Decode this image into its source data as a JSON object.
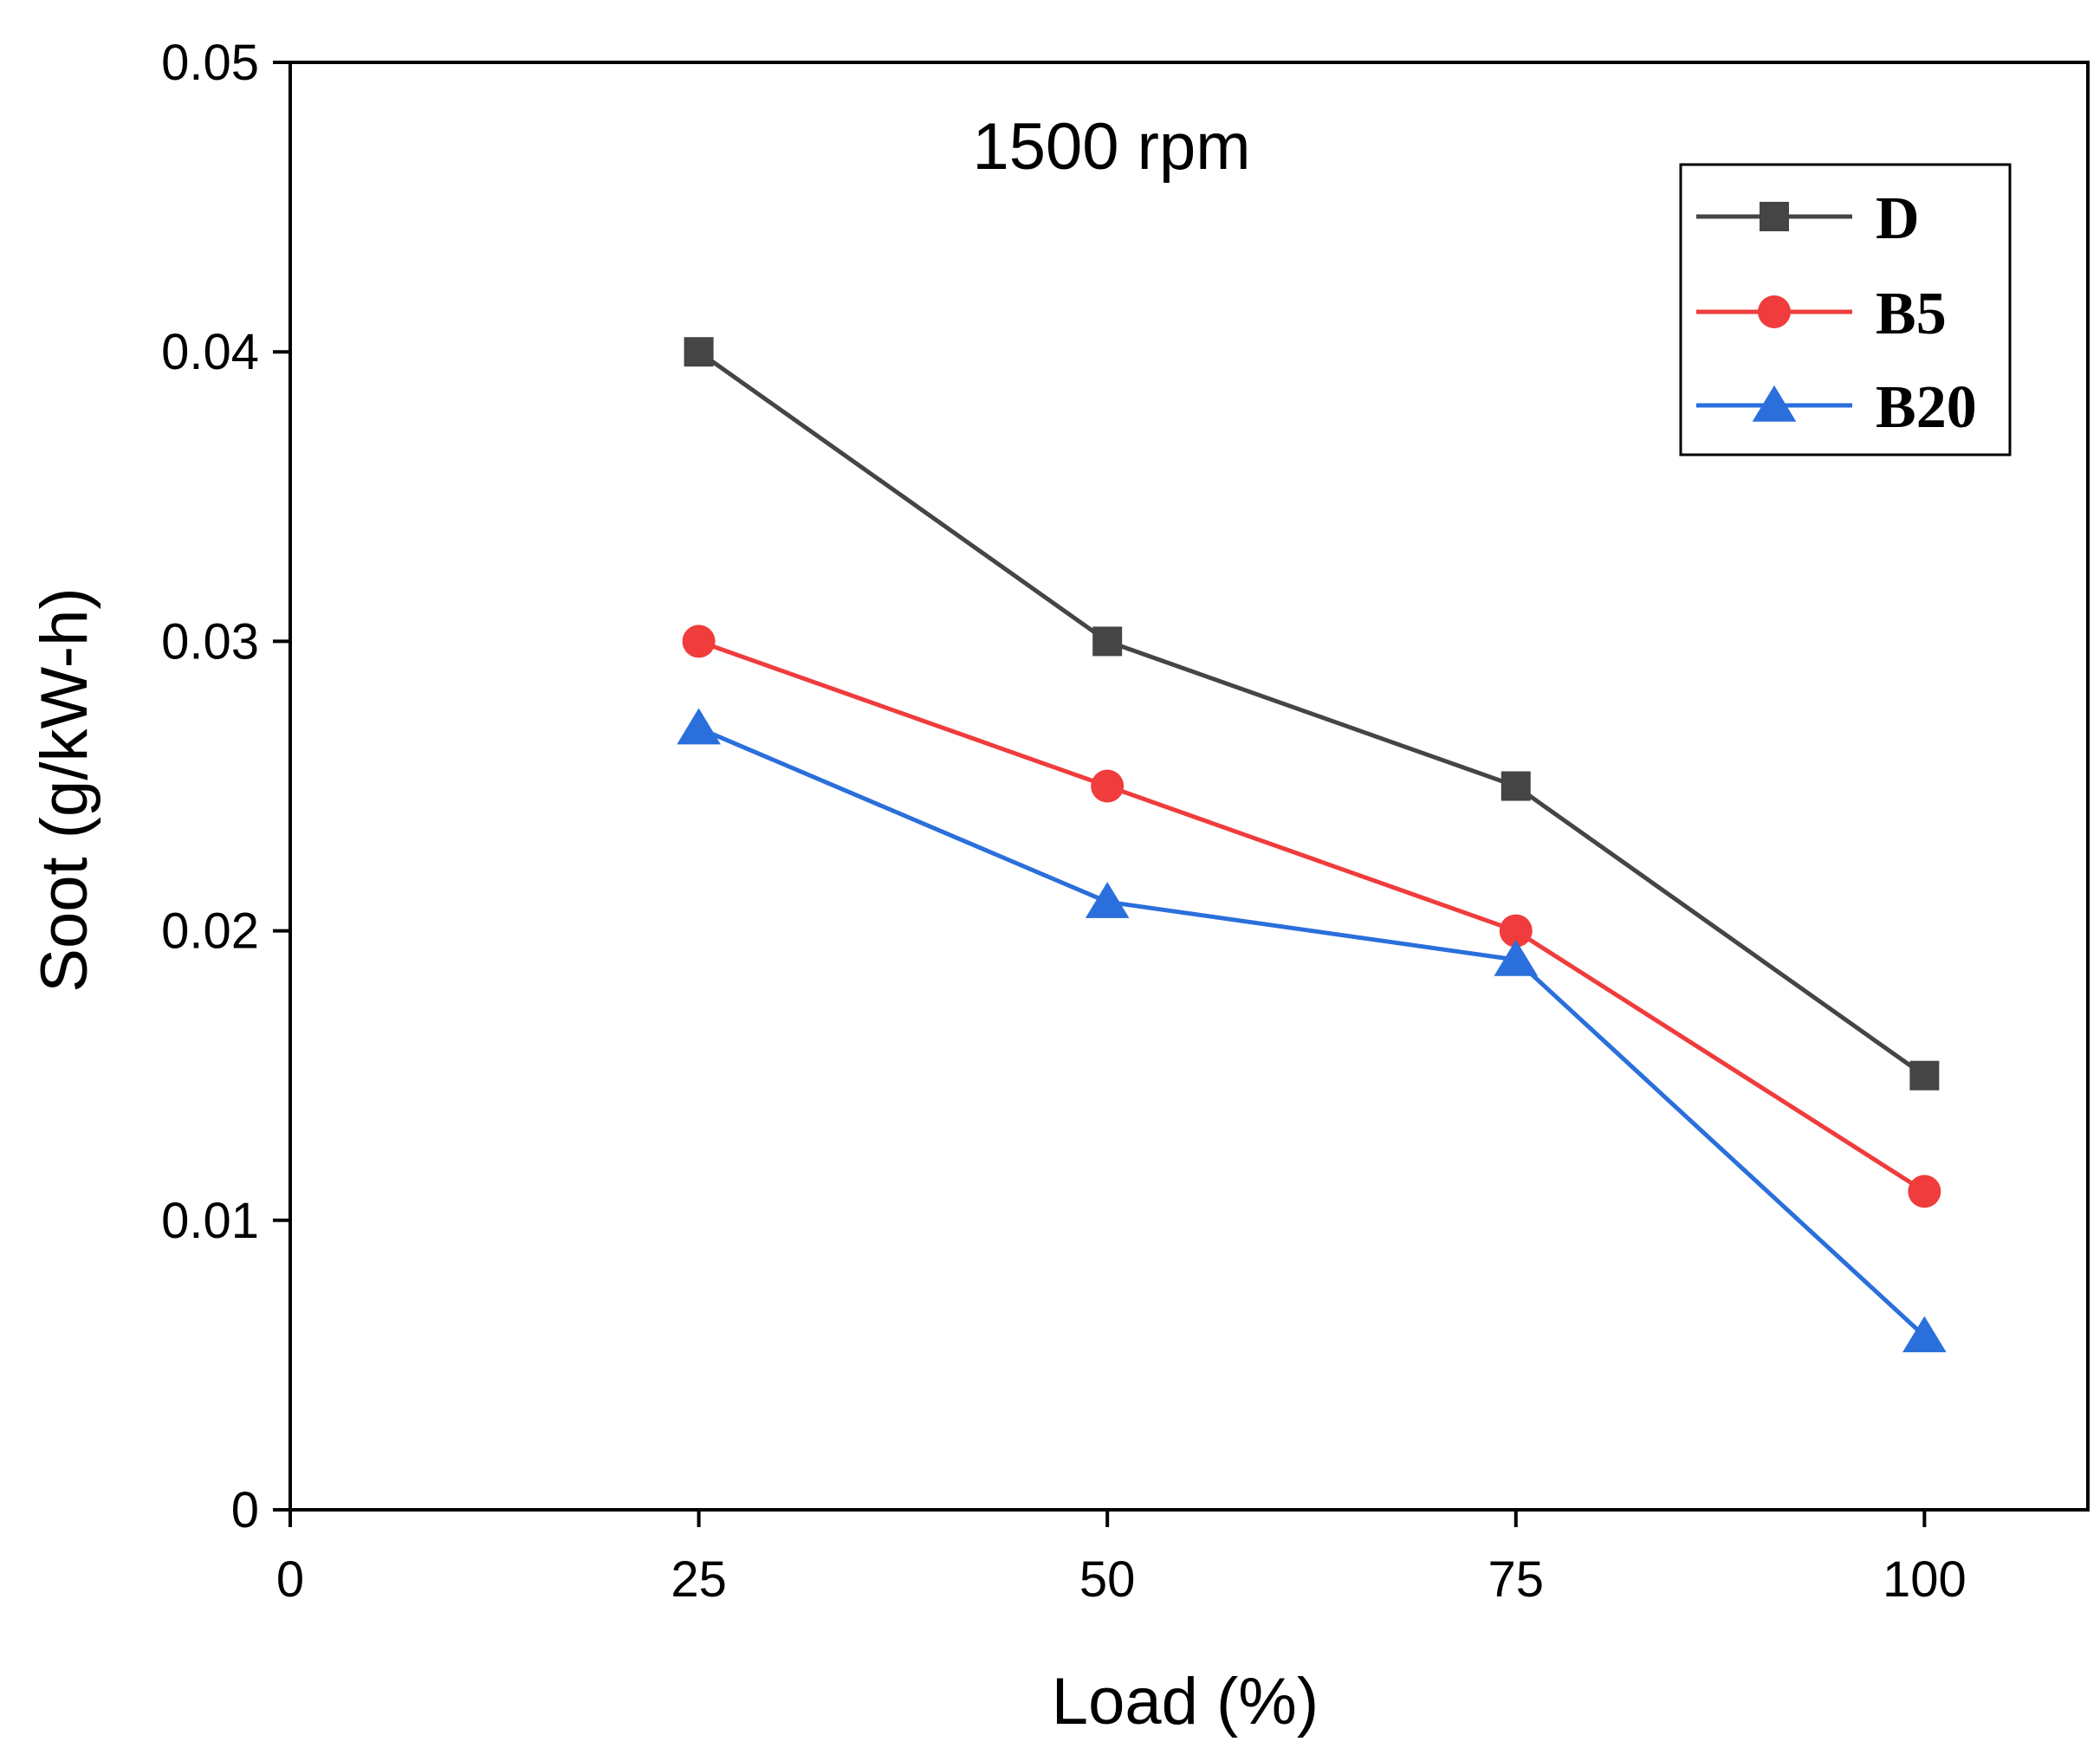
{
  "chart_data": {
    "type": "line",
    "title": "",
    "annotation": "1500 rpm",
    "xlabel": "Load (%)",
    "ylabel": "Soot (g/kW-h)",
    "xlim": [
      0,
      110
    ],
    "ylim": [
      0,
      0.05
    ],
    "xticks": [
      0,
      25,
      50,
      75,
      100
    ],
    "xtick_labels": [
      "0",
      "25",
      "50",
      "75",
      "100"
    ],
    "yticks": [
      0,
      0.01,
      0.02,
      0.03,
      0.04,
      0.05
    ],
    "ytick_labels": [
      "0",
      "0.01",
      "0.02",
      "0.03",
      "0.04",
      "0.05"
    ],
    "grid": false,
    "legend_position": "top-right",
    "x": [
      25,
      50,
      75,
      100
    ],
    "series": [
      {
        "name": "D",
        "marker": "square",
        "color": "#454545",
        "values": [
          0.04,
          0.03,
          0.025,
          0.015
        ]
      },
      {
        "name": "B5",
        "marker": "circle",
        "color": "#f03c3c",
        "values": [
          0.03,
          0.025,
          0.02,
          0.011
        ]
      },
      {
        "name": "B20",
        "marker": "triangle",
        "color": "#2a6fdb",
        "values": [
          0.027,
          0.021,
          0.019,
          0.006
        ]
      }
    ]
  }
}
